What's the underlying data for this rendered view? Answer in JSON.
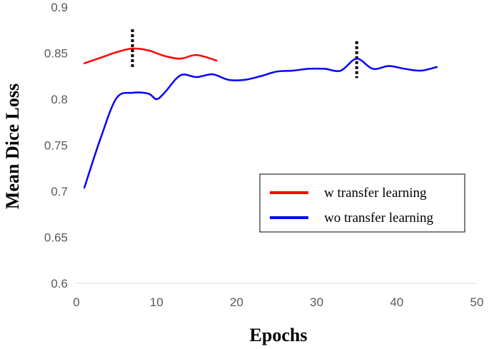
{
  "chart_data": {
    "type": "line",
    "title": "",
    "xlabel": "Epochs",
    "ylabel": "Mean Dice Loss",
    "xlim": [
      0,
      50
    ],
    "ylim": [
      0.6,
      0.9
    ],
    "x_ticks": [
      "0",
      "10",
      "20",
      "30",
      "40",
      "50"
    ],
    "y_ticks": [
      "0.6",
      "0.65",
      "0.7",
      "0.75",
      "0.8",
      "0.85",
      "0.9"
    ],
    "grid": false,
    "legend_position": "center-right",
    "series": [
      {
        "name": "w transfer learning",
        "color": "#ff0000",
        "x": [
          1,
          3,
          5,
          7,
          9,
          11,
          13,
          15,
          17.5
        ],
        "y": [
          0.839,
          0.845,
          0.851,
          0.855,
          0.853,
          0.847,
          0.844,
          0.848,
          0.842
        ]
      },
      {
        "name": "wo transfer learning",
        "color": "#0000ff",
        "x": [
          1,
          3,
          5,
          7,
          9,
          10,
          11,
          13,
          15,
          17,
          19,
          21,
          23,
          25,
          27,
          29,
          31,
          33,
          35,
          37,
          39,
          41,
          43,
          45
        ],
        "y": [
          0.704,
          0.757,
          0.801,
          0.807,
          0.806,
          0.8,
          0.807,
          0.826,
          0.824,
          0.827,
          0.821,
          0.821,
          0.825,
          0.83,
          0.831,
          0.833,
          0.833,
          0.831,
          0.844,
          0.833,
          0.836,
          0.833,
          0.831,
          0.835
        ]
      }
    ],
    "markers": [
      {
        "x": 7,
        "y_range": [
          0.835,
          0.876
        ]
      },
      {
        "x": 35,
        "y_range": [
          0.823,
          0.863
        ]
      }
    ]
  }
}
